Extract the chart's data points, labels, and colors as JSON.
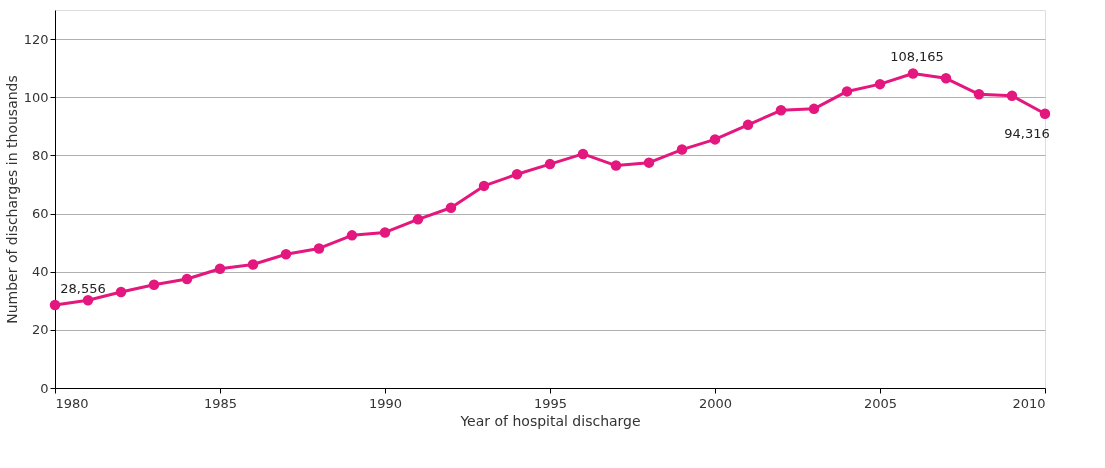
{
  "chart_data": {
    "type": "line",
    "xlabel": "Year of hospital discharge",
    "ylabel": "Number of discharges in thousands",
    "x": [
      1980,
      1981,
      1982,
      1983,
      1984,
      1985,
      1986,
      1987,
      1988,
      1989,
      1990,
      1991,
      1992,
      1993,
      1994,
      1995,
      1996,
      1997,
      1998,
      1999,
      2000,
      2001,
      2002,
      2003,
      2004,
      2005,
      2006,
      2007,
      2008,
      2009,
      2010
    ],
    "series": [
      {
        "color": "#e3177d",
        "values": [
          28.556,
          30.2,
          33,
          35.5,
          37.5,
          41,
          42.5,
          46,
          48,
          52.5,
          53.5,
          58,
          62,
          69.5,
          73.5,
          77,
          80.5,
          76.5,
          77.5,
          82,
          85.5,
          90.5,
          95.5,
          96,
          102,
          104.5,
          108.165,
          106.5,
          101,
          100.5,
          94.316
        ]
      }
    ],
    "xlim": [
      1980,
      2010
    ],
    "xticks": [
      1980,
      1985,
      1990,
      1995,
      2000,
      2005,
      2010
    ],
    "ylim": [
      0,
      130
    ],
    "yticks": [
      0,
      20,
      40,
      60,
      80,
      100,
      120
    ],
    "grid": "y",
    "marker": "circle",
    "line_style": "solid",
    "annotations": [
      {
        "text": "28,556",
        "x": 1980,
        "y": 28.556
      },
      {
        "text": "108,165",
        "x": 2006,
        "y": 108.165
      },
      {
        "text": "94,316",
        "x": 2010,
        "y": 94.316
      }
    ]
  }
}
